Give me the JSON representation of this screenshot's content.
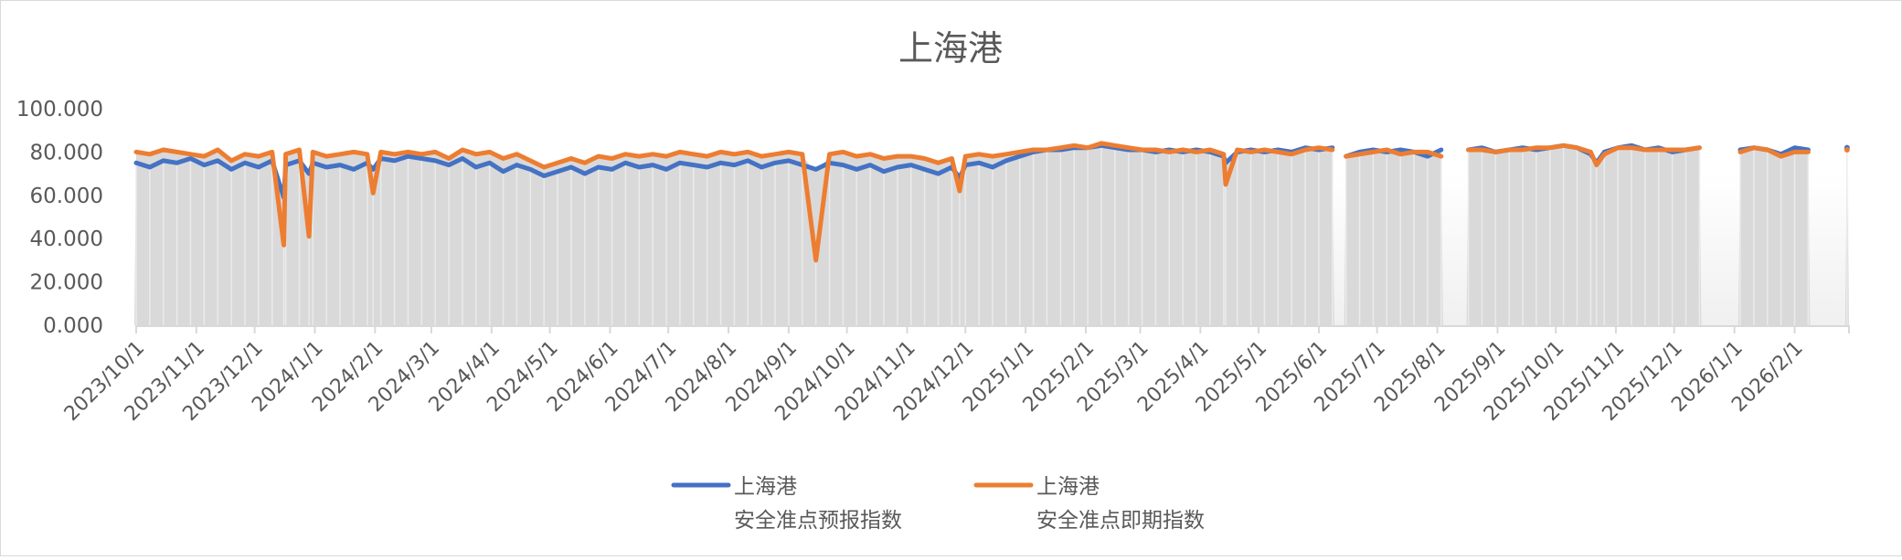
{
  "chart_data": {
    "type": "line",
    "title": "上海港",
    "xlabel": "",
    "ylabel": "",
    "ylim": [
      0,
      100
    ],
    "y_ticks": [
      "0.000",
      "20.000",
      "40.000",
      "60.000",
      "80.000",
      "100.000"
    ],
    "x_range": [
      "2023-10-01",
      "2026-03-01"
    ],
    "x_tick_labels": [
      "2023/10/1",
      "2023/11/1",
      "2023/12/1",
      "2024/1/1",
      "2024/2/1",
      "2024/3/1",
      "2024/4/1",
      "2024/5/1",
      "2024/6/1",
      "2024/7/1",
      "2024/8/1",
      "2024/9/1",
      "2024/10/1",
      "2024/11/1",
      "2024/12/1",
      "2025/1/1",
      "2025/2/1",
      "2025/3/1",
      "2025/4/1",
      "2025/5/1",
      "2025/6/1",
      "2025/7/1",
      "2025/8/1",
      "2025/9/1",
      "2025/10/1",
      "2025/11/1",
      "2025/12/1",
      "2026/1/1",
      "2026/2/1"
    ],
    "grid": false,
    "legend_position": "bottom",
    "background_fill_color": "#d9d9d9",
    "series": [
      {
        "name": "上海港\n安全准点预报指数",
        "name_lines": [
          "上海港",
          "安全准点预报指数"
        ],
        "color": "#4472c4"
      },
      {
        "name": "上海港\n安全准点即期指数",
        "name_lines": [
          "上海港",
          "安全准点即期指数"
        ],
        "color": "#ed7d31"
      }
    ],
    "columns": [
      "date",
      "上海港 安全准点预报指数",
      "上海港 安全准点即期指数"
    ],
    "points": [
      [
        "2023-10-01",
        75,
        80
      ],
      [
        "2023-10-08",
        73,
        79
      ],
      [
        "2023-10-15",
        76,
        81
      ],
      [
        "2023-10-22",
        75,
        80
      ],
      [
        "2023-10-29",
        77,
        79
      ],
      [
        "2023-11-05",
        74,
        78
      ],
      [
        "2023-11-12",
        76,
        81
      ],
      [
        "2023-11-19",
        72,
        76
      ],
      [
        "2023-11-26",
        75,
        79
      ],
      [
        "2023-12-03",
        73,
        78
      ],
      [
        "2023-12-10",
        76,
        80
      ],
      [
        "2023-12-16",
        59,
        37
      ],
      [
        "2023-12-17",
        74,
        79
      ],
      [
        "2023-12-24",
        76,
        81
      ],
      [
        "2023-12-29",
        70,
        41
      ],
      [
        "2023-12-31",
        75,
        80
      ],
      [
        "2024-01-07",
        73,
        78
      ],
      [
        "2024-01-14",
        74,
        79
      ],
      [
        "2024-01-21",
        72,
        80
      ],
      [
        "2024-01-28",
        75,
        79
      ],
      [
        "2024-01-31",
        72,
        61
      ],
      [
        "2024-02-04",
        77,
        80
      ],
      [
        "2024-02-11",
        76,
        79
      ],
      [
        "2024-02-18",
        78,
        80
      ],
      [
        "2024-02-25",
        77,
        79
      ],
      [
        "2024-03-03",
        76,
        80
      ],
      [
        "2024-03-10",
        74,
        77
      ],
      [
        "2024-03-17",
        77,
        81
      ],
      [
        "2024-03-24",
        73,
        79
      ],
      [
        "2024-03-31",
        75,
        80
      ],
      [
        "2024-04-07",
        71,
        77
      ],
      [
        "2024-04-14",
        74,
        79
      ],
      [
        "2024-04-21",
        72,
        76
      ],
      [
        "2024-04-28",
        69,
        73
      ],
      [
        "2024-05-05",
        71,
        75
      ],
      [
        "2024-05-12",
        73,
        77
      ],
      [
        "2024-05-19",
        70,
        75
      ],
      [
        "2024-05-26",
        73,
        78
      ],
      [
        "2024-06-02",
        72,
        77
      ],
      [
        "2024-06-09",
        75,
        79
      ],
      [
        "2024-06-16",
        73,
        78
      ],
      [
        "2024-06-23",
        74,
        79
      ],
      [
        "2024-06-30",
        72,
        78
      ],
      [
        "2024-07-07",
        75,
        80
      ],
      [
        "2024-07-14",
        74,
        79
      ],
      [
        "2024-07-21",
        73,
        78
      ],
      [
        "2024-07-28",
        75,
        80
      ],
      [
        "2024-08-04",
        74,
        79
      ],
      [
        "2024-08-11",
        76,
        80
      ],
      [
        "2024-08-18",
        73,
        78
      ],
      [
        "2024-08-25",
        75,
        79
      ],
      [
        "2024-09-01",
        76,
        80
      ],
      [
        "2024-09-08",
        74,
        79
      ],
      [
        "2024-09-15",
        72,
        30
      ],
      [
        "2024-09-22",
        75,
        79
      ],
      [
        "2024-09-29",
        74,
        80
      ],
      [
        "2024-10-06",
        72,
        78
      ],
      [
        "2024-10-13",
        74,
        79
      ],
      [
        "2024-10-20",
        71,
        77
      ],
      [
        "2024-10-27",
        73,
        78
      ],
      [
        "2024-11-03",
        74,
        78
      ],
      [
        "2024-11-10",
        72,
        77
      ],
      [
        "2024-11-17",
        70,
        75
      ],
      [
        "2024-11-24",
        73,
        77
      ],
      [
        "2024-11-28",
        68,
        62
      ],
      [
        "2024-12-01",
        74,
        78
      ],
      [
        "2024-12-08",
        75,
        79
      ],
      [
        "2024-12-15",
        73,
        78
      ],
      [
        "2024-12-22",
        76,
        79
      ],
      [
        "2024-12-29",
        78,
        80
      ],
      [
        "2025-01-05",
        80,
        81
      ],
      [
        "2025-01-12",
        81,
        81
      ],
      [
        "2025-01-19",
        81,
        82
      ],
      [
        "2025-01-26",
        82,
        83
      ],
      [
        "2025-02-02",
        82,
        82
      ],
      [
        "2025-02-09",
        83,
        84
      ],
      [
        "2025-02-16",
        82,
        83
      ],
      [
        "2025-02-23",
        81,
        82
      ],
      [
        "2025-03-02",
        81,
        81
      ],
      [
        "2025-03-09",
        80,
        81
      ],
      [
        "2025-03-16",
        81,
        80
      ],
      [
        "2025-03-23",
        80,
        81
      ],
      [
        "2025-03-30",
        81,
        80
      ],
      [
        "2025-04-06",
        80,
        81
      ],
      [
        "2025-04-13",
        78,
        79
      ],
      [
        "2025-04-14",
        75,
        65
      ],
      [
        "2025-04-20",
        80,
        81
      ],
      [
        "2025-04-27",
        81,
        80
      ],
      [
        "2025-05-04",
        80,
        81
      ],
      [
        "2025-05-11",
        81,
        80
      ],
      [
        "2025-05-18",
        80,
        79
      ],
      [
        "2025-05-25",
        82,
        81
      ],
      [
        "2025-06-01",
        81,
        82
      ],
      [
        "2025-06-08",
        82,
        81
      ],
      [
        "2025-06-11",
        null,
        null
      ],
      [
        "2025-06-15",
        78,
        78
      ],
      [
        "2025-06-22",
        80,
        79
      ],
      [
        "2025-06-29",
        81,
        80
      ],
      [
        "2025-07-06",
        80,
        81
      ],
      [
        "2025-07-13",
        81,
        79
      ],
      [
        "2025-07-20",
        80,
        80
      ],
      [
        "2025-07-27",
        78,
        80
      ],
      [
        "2025-08-03",
        81,
        78
      ],
      [
        "2025-08-10",
        null,
        null
      ],
      [
        "2025-08-17",
        81,
        81
      ],
      [
        "2025-08-24",
        82,
        81
      ],
      [
        "2025-08-31",
        80,
        80
      ],
      [
        "2025-09-07",
        81,
        81
      ],
      [
        "2025-09-14",
        82,
        81
      ],
      [
        "2025-09-21",
        81,
        82
      ],
      [
        "2025-09-28",
        82,
        82
      ],
      [
        "2025-10-05",
        83,
        83
      ],
      [
        "2025-10-12",
        82,
        82
      ],
      [
        "2025-10-19",
        79,
        80
      ],
      [
        "2025-10-22",
        75,
        74
      ],
      [
        "2025-10-26",
        80,
        79
      ],
      [
        "2025-11-02",
        82,
        82
      ],
      [
        "2025-11-09",
        83,
        82
      ],
      [
        "2025-11-16",
        81,
        81
      ],
      [
        "2025-11-23",
        82,
        81
      ],
      [
        "2025-11-30",
        80,
        81
      ],
      [
        "2025-12-07",
        81,
        81
      ],
      [
        "2025-12-14",
        82,
        82
      ],
      [
        "2025-12-21",
        null,
        null
      ],
      [
        "2025-12-28",
        null,
        null
      ],
      [
        "2026-01-04",
        81,
        80
      ],
      [
        "2026-01-11",
        82,
        82
      ],
      [
        "2026-01-18",
        81,
        81
      ],
      [
        "2026-01-25",
        79,
        78
      ],
      [
        "2026-02-01",
        82,
        80
      ],
      [
        "2026-02-08",
        81,
        80
      ],
      [
        "2026-02-15",
        null,
        null
      ],
      [
        "2026-02-22",
        null,
        null
      ],
      [
        "2026-02-28",
        82,
        81
      ]
    ]
  }
}
